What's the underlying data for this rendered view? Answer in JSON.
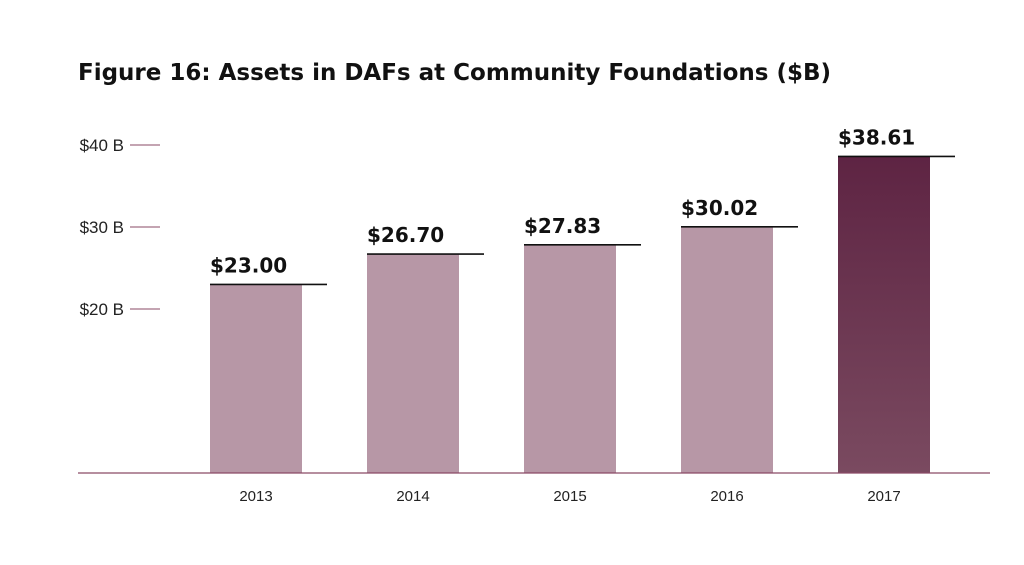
{
  "chart_data": {
    "type": "bar",
    "title": "Figure 16: Assets in DAFs at Community Foundations ($B)",
    "categories": [
      "2013",
      "2014",
      "2015",
      "2016",
      "2017"
    ],
    "values": [
      23.0,
      26.7,
      27.83,
      30.02,
      38.61
    ],
    "data_labels": [
      "$23.00",
      "$26.70",
      "$27.83",
      "$30.02",
      "$38.61"
    ],
    "y_ticks": [
      {
        "value": 20,
        "label": "$20 B"
      },
      {
        "value": 30,
        "label": "$30 B"
      },
      {
        "value": 40,
        "label": "$40 B"
      }
    ],
    "ylim": [
      0,
      40
    ],
    "xlabel": "",
    "ylabel": "",
    "grid": false,
    "legend": "none",
    "highlight_index": 4,
    "colors": {
      "bar": "#b797a6",
      "highlight_top": "#5e2443",
      "highlight_bottom": "#7a4a60",
      "axis": "#8a4a66",
      "tick": "#8a4a66",
      "cap_line": "#111111"
    }
  }
}
